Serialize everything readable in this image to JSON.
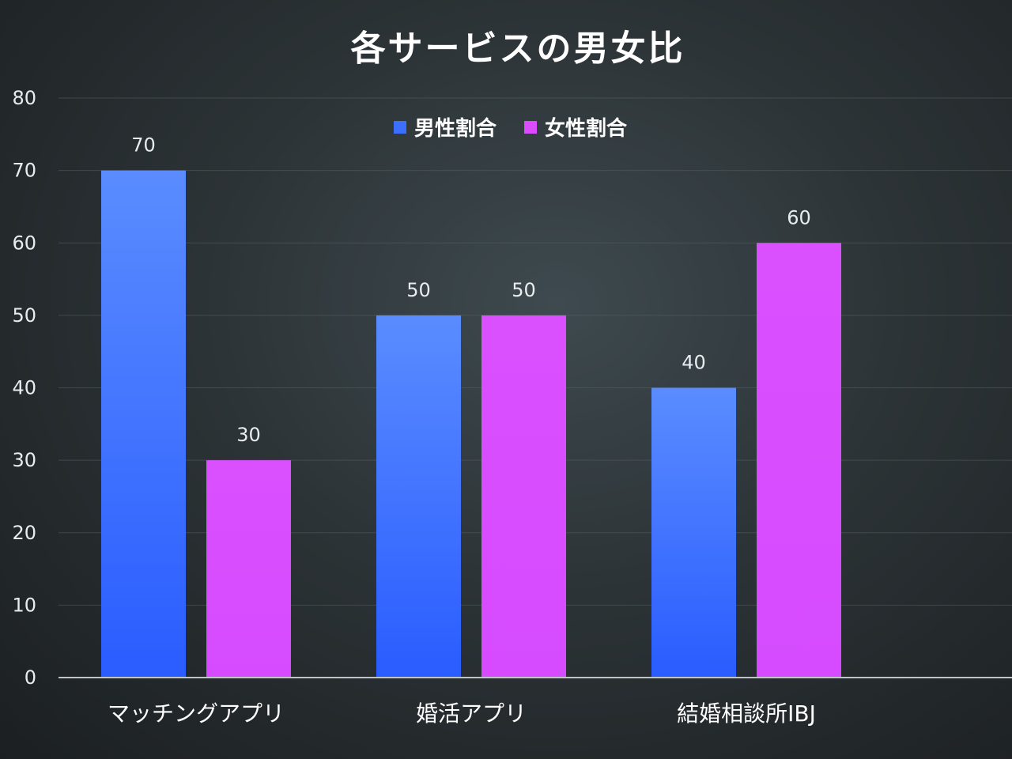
{
  "chart_data": {
    "type": "bar",
    "title": "各サービスの男女比",
    "categories": [
      "マッチングアプリ",
      "婚活アプリ",
      "結婚相談所IBJ"
    ],
    "series": [
      {
        "name": "男性割合",
        "values": [
          70,
          50,
          40
        ],
        "color_top": "#5a8cff",
        "color_bottom": "#2a5cff"
      },
      {
        "name": "女性割合",
        "values": [
          30,
          50,
          60
        ],
        "color_top": "#d94cff",
        "color_bottom": "#d94cff"
      }
    ],
    "ylim": [
      0,
      80
    ],
    "yticks": [
      0,
      10,
      20,
      30,
      40,
      50,
      60,
      70,
      80
    ],
    "grid": true,
    "legend_position": "top-center",
    "xlabel": "",
    "ylabel": ""
  },
  "colors": {
    "male": "#3d6fff",
    "female": "#d94cff"
  }
}
